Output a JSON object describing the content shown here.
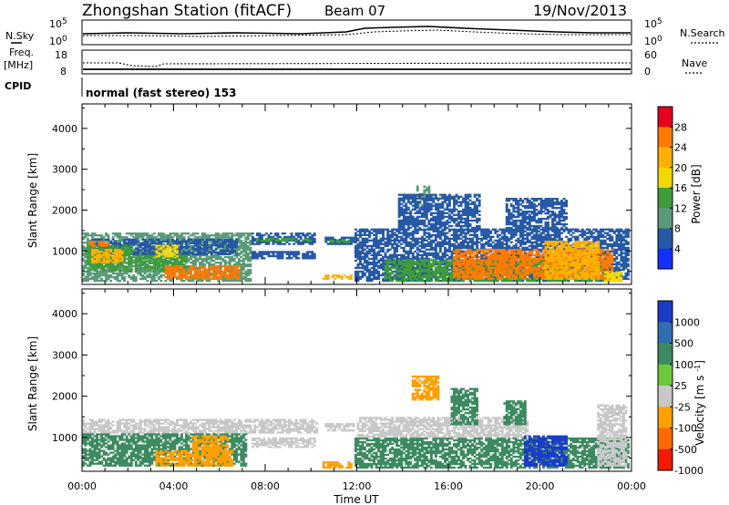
{
  "header": {
    "title": "Zhongshan Station (fitACF)",
    "beam": "Beam 07",
    "date": "19/Nov/2013"
  },
  "status_panels": {
    "nsky": {
      "label": "N.Sky",
      "left_ticks": [
        "10^5",
        "10^0"
      ],
      "right_ticks": [
        "10^5",
        "10^0"
      ],
      "right_label": "N.Search"
    },
    "freq": {
      "label_line1": "Freq.",
      "label_line2": "[MHz]",
      "left_ticks": [
        "18",
        "8"
      ],
      "right_ticks": [
        "60",
        "0"
      ],
      "right_label": "Nave"
    },
    "cpid": {
      "label": "CPID",
      "text": "normal (fast stereo) 153"
    }
  },
  "chart_data": [
    {
      "type": "heatmap",
      "name": "power",
      "ylabel": "Slant Range [km]",
      "xlabel": "Time UT",
      "xlim": [
        0,
        24
      ],
      "ylim": [
        180,
        4600
      ],
      "yticks": [
        "1000",
        "2000",
        "3000",
        "4000"
      ],
      "xticks": [
        "00:00",
        "04:00",
        "08:00",
        "12:00",
        "16:00",
        "20:00",
        "00:00"
      ],
      "colorbar": {
        "label": "Power [dB]",
        "ticks": [
          "28",
          "24",
          "20",
          "16",
          "12",
          "8",
          "4"
        ],
        "colors": [
          "#e8001c",
          "#ff7a00",
          "#ffb000",
          "#f2d800",
          "#3e9c3a",
          "#5a9a78",
          "#2659a6",
          "#1230ff"
        ]
      },
      "regions": [
        {
          "t0": 0.0,
          "t1": 7.4,
          "r0": 250,
          "r1": 1450,
          "level": 12
        },
        {
          "t0": 0.3,
          "t1": 6.8,
          "r0": 900,
          "r1": 1300,
          "level": 8
        },
        {
          "t0": 0.2,
          "t1": 2.2,
          "r0": 500,
          "r1": 1150,
          "level": 16
        },
        {
          "t0": 0.4,
          "t1": 1.8,
          "r0": 700,
          "r1": 1050,
          "level": 24
        },
        {
          "t0": 2.3,
          "t1": 4.6,
          "r0": 500,
          "r1": 900,
          "level": 16
        },
        {
          "t0": 3.6,
          "t1": 6.9,
          "r0": 300,
          "r1": 650,
          "level": 28
        },
        {
          "t0": 3.2,
          "t1": 4.2,
          "r0": 850,
          "r1": 1150,
          "level": 20
        },
        {
          "t0": 0.3,
          "t1": 1.2,
          "r0": 1100,
          "r1": 1250,
          "level": 28
        },
        {
          "t0": 7.4,
          "t1": 10.2,
          "r0": 1150,
          "r1": 1450,
          "level": 8
        },
        {
          "t0": 7.4,
          "t1": 10.2,
          "r0": 800,
          "r1": 1000,
          "level": 8
        },
        {
          "t0": 7.6,
          "t1": 10.0,
          "r0": 1230,
          "r1": 1320,
          "level": 16
        },
        {
          "t0": 10.6,
          "t1": 11.9,
          "r0": 1150,
          "r1": 1350,
          "level": 8
        },
        {
          "t0": 10.8,
          "t1": 11.7,
          "r0": 1200,
          "r1": 1280,
          "level": 16
        },
        {
          "t0": 10.5,
          "t1": 11.8,
          "r0": 300,
          "r1": 420,
          "level": 24
        },
        {
          "t0": 11.9,
          "t1": 23.9,
          "r0": 250,
          "r1": 1550,
          "level": 8
        },
        {
          "t0": 13.2,
          "t1": 23.0,
          "r0": 250,
          "r1": 800,
          "level": 16
        },
        {
          "t0": 16.2,
          "t1": 23.2,
          "r0": 300,
          "r1": 1050,
          "level": 28
        },
        {
          "t0": 20.2,
          "t1": 22.6,
          "r0": 300,
          "r1": 1250,
          "level": 24
        },
        {
          "t0": 14.6,
          "t1": 15.2,
          "r0": 2050,
          "r1": 2600,
          "level": 12
        },
        {
          "t0": 13.8,
          "t1": 17.4,
          "r0": 1500,
          "r1": 2400,
          "level": 8
        },
        {
          "t0": 18.5,
          "t1": 21.2,
          "r0": 1500,
          "r1": 2300,
          "level": 8
        },
        {
          "t0": 22.8,
          "t1": 23.6,
          "r0": 250,
          "r1": 500,
          "level": 20
        }
      ]
    },
    {
      "type": "heatmap",
      "name": "velocity",
      "ylabel": "Slant Range [km]",
      "xlabel": "Time UT",
      "xlim": [
        0,
        24
      ],
      "ylim": [
        180,
        4600
      ],
      "yticks": [
        "1000",
        "2000",
        "3000",
        "4000"
      ],
      "xticks": [
        "00:00",
        "04:00",
        "08:00",
        "12:00",
        "16:00",
        "20:00",
        "00:00"
      ],
      "colorbar": {
        "label": "Velocity [m s^-1]",
        "ticks": [
          "1000",
          "500",
          "100",
          "25",
          "-25",
          "-100",
          "-500",
          "-1000"
        ],
        "colors": [
          "#1a3cc8",
          "#2f6fb0",
          "#3d8a60",
          "#6dc83c",
          "#c8c8c8",
          "#ffa000",
          "#ff6a00",
          "#f21a00"
        ]
      },
      "regions": [
        {
          "t0": 0.0,
          "t1": 10.3,
          "r0": 1100,
          "r1": 1450,
          "level": 0
        },
        {
          "t0": 0.0,
          "t1": 7.2,
          "r0": 300,
          "r1": 1100,
          "level": 100
        },
        {
          "t0": 3.2,
          "t1": 6.6,
          "r0": 300,
          "r1": 700,
          "level": -100
        },
        {
          "t0": 4.8,
          "t1": 6.4,
          "r0": 700,
          "r1": 1050,
          "level": -100
        },
        {
          "t0": 7.4,
          "t1": 10.2,
          "r0": 750,
          "r1": 1000,
          "level": 0
        },
        {
          "t0": 10.6,
          "t1": 11.9,
          "r0": 1150,
          "r1": 1350,
          "level": 0
        },
        {
          "t0": 10.5,
          "t1": 11.8,
          "r0": 250,
          "r1": 420,
          "level": -100
        },
        {
          "t0": 11.9,
          "t1": 23.9,
          "r0": 250,
          "r1": 1000,
          "level": 250
        },
        {
          "t0": 12.0,
          "t1": 19.5,
          "r0": 1000,
          "r1": 1500,
          "level": 0
        },
        {
          "t0": 19.3,
          "t1": 21.2,
          "r0": 300,
          "r1": 1050,
          "level": 800
        },
        {
          "t0": 14.4,
          "t1": 15.6,
          "r0": 1900,
          "r1": 2500,
          "level": -100
        },
        {
          "t0": 16.1,
          "t1": 17.3,
          "r0": 1300,
          "r1": 2200,
          "level": 250
        },
        {
          "t0": 18.4,
          "t1": 19.4,
          "r0": 1300,
          "r1": 1900,
          "level": 100
        },
        {
          "t0": 22.5,
          "t1": 23.8,
          "r0": 300,
          "r1": 1800,
          "level": 0
        }
      ]
    }
  ]
}
